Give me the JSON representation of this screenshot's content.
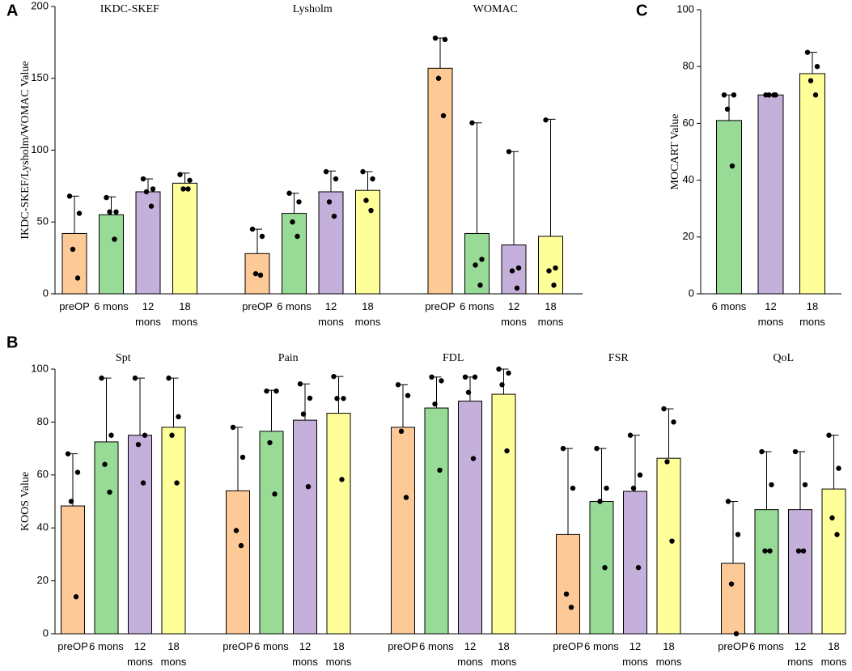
{
  "chart_data": [
    {
      "type": "bar",
      "panel": "A",
      "y_label": "IKDC-SKEF/Lysholm/WOMAC Value",
      "ylim": [
        0,
        200
      ],
      "yticks": [
        0,
        50,
        100,
        150,
        200
      ],
      "categories": [
        "preOP",
        "6 mons",
        "12 mons",
        "18 mons"
      ],
      "colors": [
        "#fdc997",
        "#97db97",
        "#c4b0da",
        "#ffff99"
      ],
      "groups": [
        {
          "title": "IKDC-SKEF",
          "values": [
            42,
            55,
            71,
            77
          ],
          "errors": [
            26,
            12.5,
            9,
            7
          ],
          "points": [
            [
              68,
              56,
              31,
              11
            ],
            [
              67,
              57,
              57,
              38
            ],
            [
              80,
              73,
              71,
              61
            ],
            [
              83,
              79,
              73,
              73
            ]
          ]
        },
        {
          "title": "Lysholm",
          "values": [
            28,
            56,
            71,
            72
          ],
          "errors": [
            17,
            14,
            14.5,
            13
          ],
          "points": [
            [
              45,
              40,
              14,
              13
            ],
            [
              70,
              64,
              50,
              40
            ],
            [
              85,
              80,
              64,
              54
            ],
            [
              85,
              80,
              65,
              58
            ]
          ]
        },
        {
          "title": "WOMAC",
          "values": [
            157,
            42,
            34,
            40
          ],
          "errors": [
            21,
            77,
            65,
            81.5
          ],
          "points": [
            [
              178,
              177,
              150,
              124
            ],
            [
              119,
              24,
              20,
              6
            ],
            [
              99,
              18,
              16,
              4
            ],
            [
              121,
              18,
              16,
              6
            ]
          ]
        }
      ]
    },
    {
      "type": "bar",
      "panel": "B",
      "y_label": "KOOS Value",
      "ylim": [
        0,
        100
      ],
      "yticks": [
        0,
        20,
        40,
        60,
        80,
        100
      ],
      "categories": [
        "preOP",
        "6 mons",
        "12 mons",
        "18 mons"
      ],
      "colors": [
        "#fdc997",
        "#97db97",
        "#c4b0da",
        "#ffff99"
      ],
      "groups": [
        {
          "title": "Spt",
          "values": [
            48.3,
            72.5,
            75,
            78
          ],
          "errors": [
            19.7,
            24.1,
            21.6,
            18.6
          ],
          "points": [
            [
              68,
              61,
              50,
              14
            ],
            [
              96.6,
              75,
              64,
              53.5
            ],
            [
              96.6,
              75,
              71.5,
              57
            ],
            [
              96.6,
              82,
              75,
              57
            ]
          ]
        },
        {
          "title": "Pain",
          "values": [
            54,
            76.5,
            80.7,
            83.3
          ],
          "errors": [
            24,
            15.5,
            13.7,
            13.9
          ],
          "points": [
            [
              78,
              66.7,
              39,
              33.3
            ],
            [
              91.7,
              91.7,
              72.2,
              52.8
            ],
            [
              94.4,
              89,
              83,
              55.6
            ],
            [
              97.2,
              88.9,
              88.9,
              58.3
            ]
          ]
        },
        {
          "title": "FDL",
          "values": [
            78,
            85.3,
            87.9,
            90.5
          ],
          "errors": [
            16.1,
            11.7,
            9.1,
            9.5
          ],
          "points": [
            [
              94.1,
              90,
              76.5,
              51.5
            ],
            [
              97,
              95.6,
              86.8,
              61.8
            ],
            [
              97,
              97,
              91.2,
              66.2
            ],
            [
              100,
              98.5,
              94.1,
              69.1
            ]
          ]
        },
        {
          "title": "FSR",
          "values": [
            37.5,
            50,
            53.8,
            66.3
          ],
          "errors": [
            32.5,
            20,
            21.2,
            18.7
          ],
          "points": [
            [
              70,
              55,
              15,
              10
            ],
            [
              70,
              55,
              50,
              25
            ],
            [
              75,
              60,
              55,
              25
            ],
            [
              85,
              80,
              65,
              35
            ]
          ]
        },
        {
          "title": "QoL",
          "values": [
            26.6,
            46.9,
            46.9,
            54.7
          ],
          "errors": [
            23.4,
            21.9,
            21.9,
            20.3
          ],
          "points": [
            [
              50,
              37.5,
              18.8,
              0
            ],
            [
              68.8,
              56.3,
              31.3,
              31.3
            ],
            [
              68.8,
              56.3,
              31.3,
              31.3
            ],
            [
              75,
              62.5,
              43.8,
              37.5
            ]
          ]
        }
      ]
    },
    {
      "type": "bar",
      "panel": "C",
      "y_label": "MOCART Value",
      "ylim": [
        0,
        100
      ],
      "yticks": [
        0,
        20,
        40,
        60,
        80,
        100
      ],
      "categories": [
        "6 mons",
        "12 mons",
        "18 mons"
      ],
      "colors": [
        "#97db97",
        "#c4b0da",
        "#ffff99"
      ],
      "groups": [
        {
          "values": [
            61,
            70,
            77.5
          ],
          "errors": [
            9,
            0,
            7.5
          ],
          "points": [
            [
              70,
              70,
              65,
              45
            ],
            [
              70,
              70,
              70,
              70
            ],
            [
              85,
              80,
              75,
              70
            ]
          ]
        }
      ]
    }
  ]
}
